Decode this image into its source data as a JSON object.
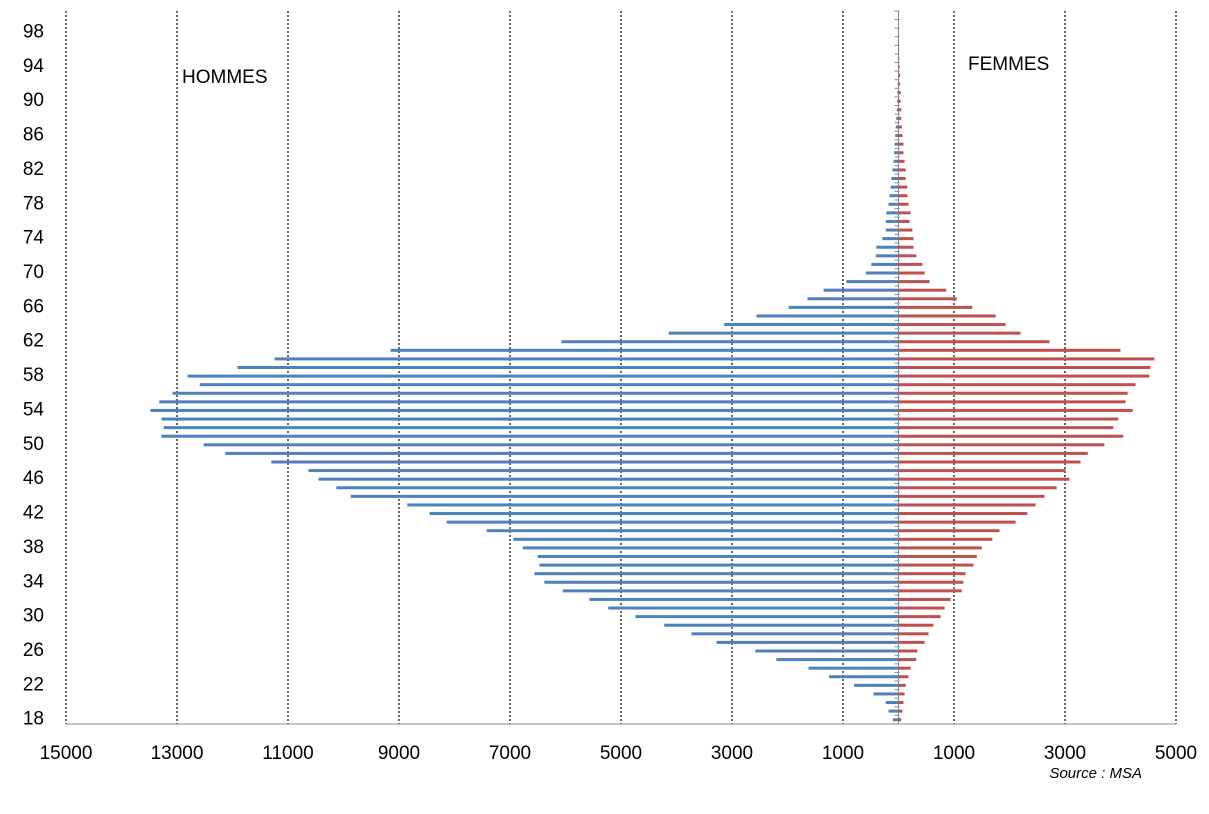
{
  "chart_data": {
    "type": "pyramid",
    "categories": [
      18,
      null,
      null,
      null,
      22,
      null,
      null,
      null,
      26,
      null,
      null,
      null,
      30,
      null,
      null,
      null,
      34,
      null,
      null,
      null,
      38,
      null,
      null,
      null,
      42,
      null,
      null,
      null,
      46,
      null,
      null,
      null,
      50,
      null,
      null,
      null,
      54,
      null,
      null,
      null,
      58,
      null,
      null,
      null,
      62,
      null,
      null,
      null,
      66,
      null,
      null,
      null,
      70,
      null,
      null,
      null,
      74,
      null,
      null,
      null,
      78,
      null,
      null,
      null,
      82,
      null,
      null,
      null,
      86,
      null,
      null,
      null,
      90,
      null,
      null,
      null,
      94,
      null,
      null,
      null,
      98,
      null,
      null
    ],
    "series": [
      {
        "name": "HOMMES",
        "color": "#4f81bd",
        "values": [
          -100,
          -180,
          -230,
          -450,
          -800,
          -1250,
          -1620,
          -2200,
          -2580,
          -3280,
          -3730,
          -4220,
          -4740,
          -5230,
          -5570,
          -6050,
          -6380,
          -6560,
          -6470,
          -6500,
          -6770,
          -6940,
          -7420,
          -8140,
          -8450,
          -8850,
          -9870,
          -10130,
          -10450,
          -10630,
          -11300,
          -12130,
          -12520,
          -13280,
          -13240,
          -13280,
          -13480,
          -13320,
          -13080,
          -12590,
          -12810,
          -11910,
          -11240,
          -9150,
          -6070,
          -4140,
          -3140,
          -2560,
          -1980,
          -1640,
          -1350,
          -940,
          -590,
          -490,
          -410,
          -400,
          -290,
          -230,
          -230,
          -220,
          -180,
          -160,
          -140,
          -130,
          -110,
          -90,
          -80,
          -70,
          -60,
          -50,
          -40,
          -30,
          -25,
          -20,
          -15,
          -10,
          -8,
          -5,
          -3,
          -2,
          -1,
          0,
          0
        ]
      },
      {
        "name": "FEMMES",
        "color": "#c0504d",
        "values": [
          50,
          70,
          90,
          110,
          130,
          180,
          220,
          320,
          340,
          470,
          540,
          630,
          760,
          830,
          940,
          1140,
          1170,
          1210,
          1350,
          1410,
          1500,
          1690,
          1820,
          2110,
          2320,
          2470,
          2630,
          2850,
          3080,
          3010,
          3280,
          3410,
          3710,
          4050,
          3870,
          3960,
          4220,
          4090,
          4130,
          4270,
          4520,
          4540,
          4610,
          4000,
          2720,
          2200,
          1930,
          1750,
          1330,
          1050,
          860,
          560,
          470,
          430,
          320,
          270,
          270,
          250,
          200,
          220,
          180,
          160,
          160,
          130,
          130,
          110,
          90,
          90,
          70,
          60,
          50,
          50,
          40,
          40,
          30,
          30,
          20,
          15,
          10,
          8,
          5,
          3,
          0
        ]
      }
    ],
    "xlim": [
      -15000,
      5000
    ],
    "xticks": [
      {
        "value": -15000,
        "label": "15000"
      },
      {
        "value": -13000,
        "label": "13000"
      },
      {
        "value": -11000,
        "label": "11000"
      },
      {
        "value": -9000,
        "label": "9000"
      },
      {
        "value": -7000,
        "label": "7000"
      },
      {
        "value": -5000,
        "label": "5000"
      },
      {
        "value": -3000,
        "label": "3000"
      },
      {
        "value": -1000,
        "label": "1000"
      },
      1000,
      3000,
      5000
    ],
    "grid": true,
    "source": "Source : MSA"
  }
}
